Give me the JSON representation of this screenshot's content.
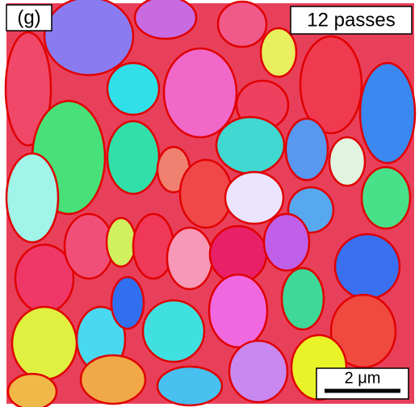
{
  "panel_label": "(g)",
  "condition_label": "12 passes",
  "scale_bar": {
    "label": "2 μm"
  }
}
